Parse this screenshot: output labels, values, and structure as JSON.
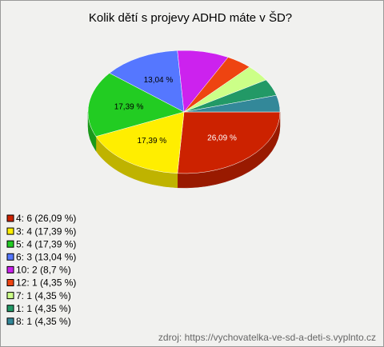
{
  "chart_data": {
    "type": "pie",
    "title": "Kolik dětí s projevy ADHD máte v ŠD?",
    "categories": [
      "4: 6 (26,09 %)",
      "3: 4 (17,39 %)",
      "5: 4 (17,39 %)",
      "6: 3 (13,04 %)",
      "10: 2 (8,7 %)",
      "12: 1 (4,35 %)",
      "7: 1 (4,35 %)",
      "1: 1 (4,35 %)",
      "8: 1 (4,35 %)"
    ],
    "values": [
      26.09,
      17.39,
      17.39,
      13.04,
      8.7,
      4.35,
      4.35,
      4.35,
      4.35
    ],
    "value_labels": [
      "26,09 %",
      "17,39 %",
      "17,39 %",
      "13,04 %",
      null,
      null,
      null,
      null,
      null
    ],
    "colors": [
      "#cc2200",
      "#ffee00",
      "#22cc22",
      "#5577ff",
      "#cc22ee",
      "#ee4411",
      "#ccff88",
      "#229966",
      "#338899"
    ],
    "source": "zdroj: https://vychovatelka-ve-sd-a-deti-s.vyplnto.cz"
  }
}
